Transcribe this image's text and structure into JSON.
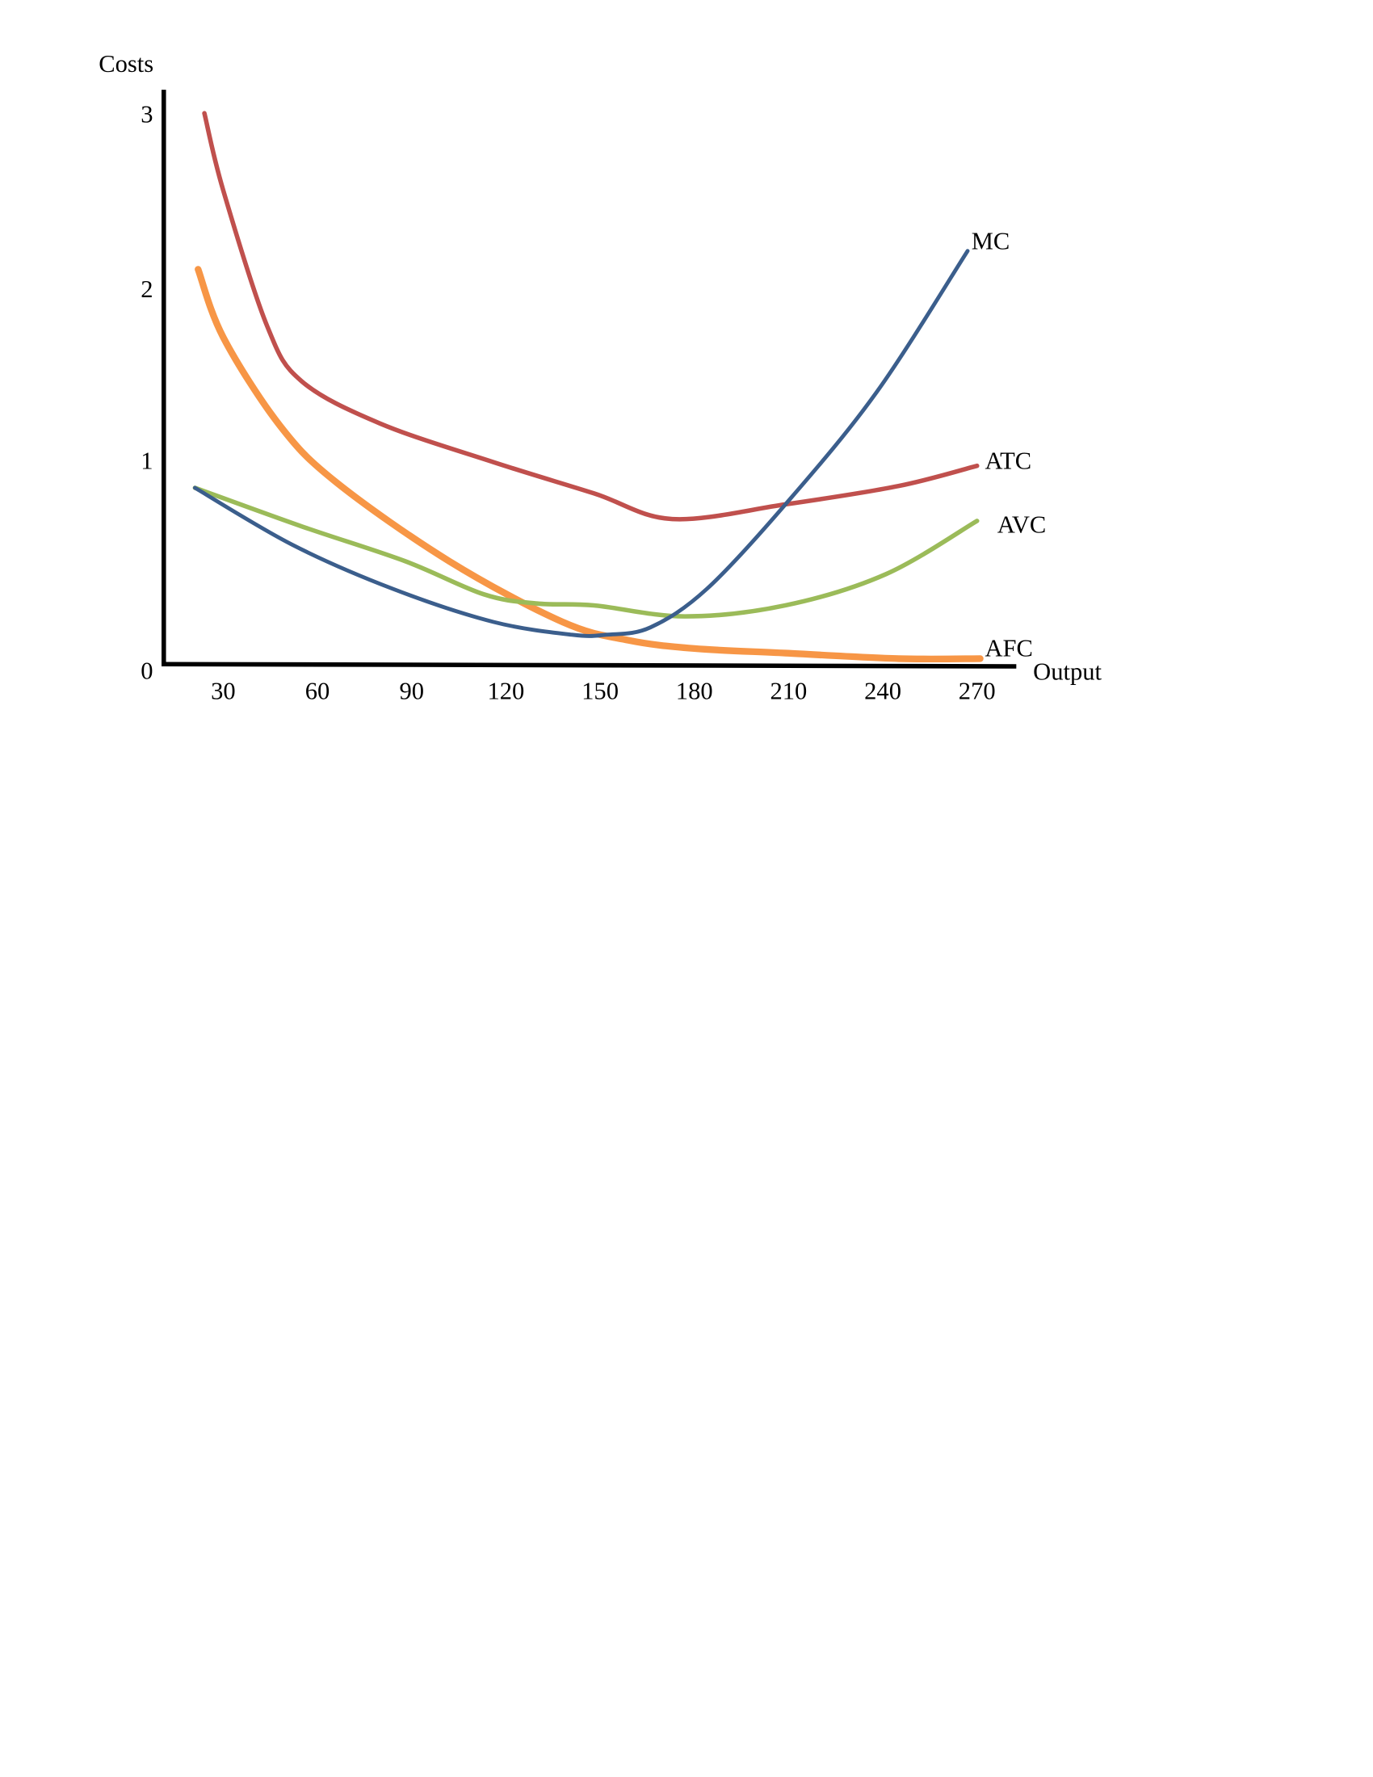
{
  "chart_data": {
    "type": "line",
    "title": "",
    "xlabel": "Output",
    "ylabel": "Costs",
    "xlim": [
      11,
      282
    ],
    "ylim": [
      0,
      3
    ],
    "grid": false,
    "legend": "none (labels at line ends)",
    "x_ticks": [
      "30",
      "60",
      "90",
      "120",
      "150",
      "180",
      "210",
      "240",
      "270"
    ],
    "x_tick_values": [
      30,
      60,
      90,
      120,
      150,
      180,
      210,
      240,
      270
    ],
    "y_ticks": [
      "0",
      "1",
      "2",
      "3"
    ],
    "y_tick_values": [
      0,
      1,
      2,
      3
    ],
    "series": [
      {
        "name": "ATC",
        "color": "#c0504d",
        "x": [
          24,
          30,
          44,
          55,
          80,
          116,
          148,
          173,
          209,
          245,
          270
        ],
        "y": [
          3.0,
          2.58,
          1.84,
          1.54,
          1.31,
          1.1,
          0.93,
          0.79,
          0.87,
          0.97,
          1.08
        ]
      },
      {
        "name": "AFC",
        "color": "#f79646",
        "x": [
          22,
          30,
          48,
          66,
          102,
          138,
          159,
          180,
          209,
          245,
          271
        ],
        "y": [
          2.15,
          1.78,
          1.3,
          0.99,
          0.56,
          0.23,
          0.13,
          0.085,
          0.06,
          0.03,
          0.03
        ]
      },
      {
        "name": "AVC",
        "color": "#9bbb59",
        "x": [
          21,
          55,
          88,
          113,
          130,
          148,
          177,
          209,
          241,
          270
        ],
        "y": [
          0.96,
          0.75,
          0.56,
          0.38,
          0.33,
          0.32,
          0.26,
          0.32,
          0.49,
          0.78
        ]
      },
      {
        "name": "MC",
        "color": "#3b5e8c",
        "x": [
          21,
          52,
          84,
          116,
          141,
          152,
          166,
          184,
          209,
          238,
          267
        ],
        "y": [
          0.96,
          0.65,
          0.41,
          0.23,
          0.16,
          0.16,
          0.2,
          0.41,
          0.87,
          1.48,
          2.25
        ]
      }
    ]
  }
}
